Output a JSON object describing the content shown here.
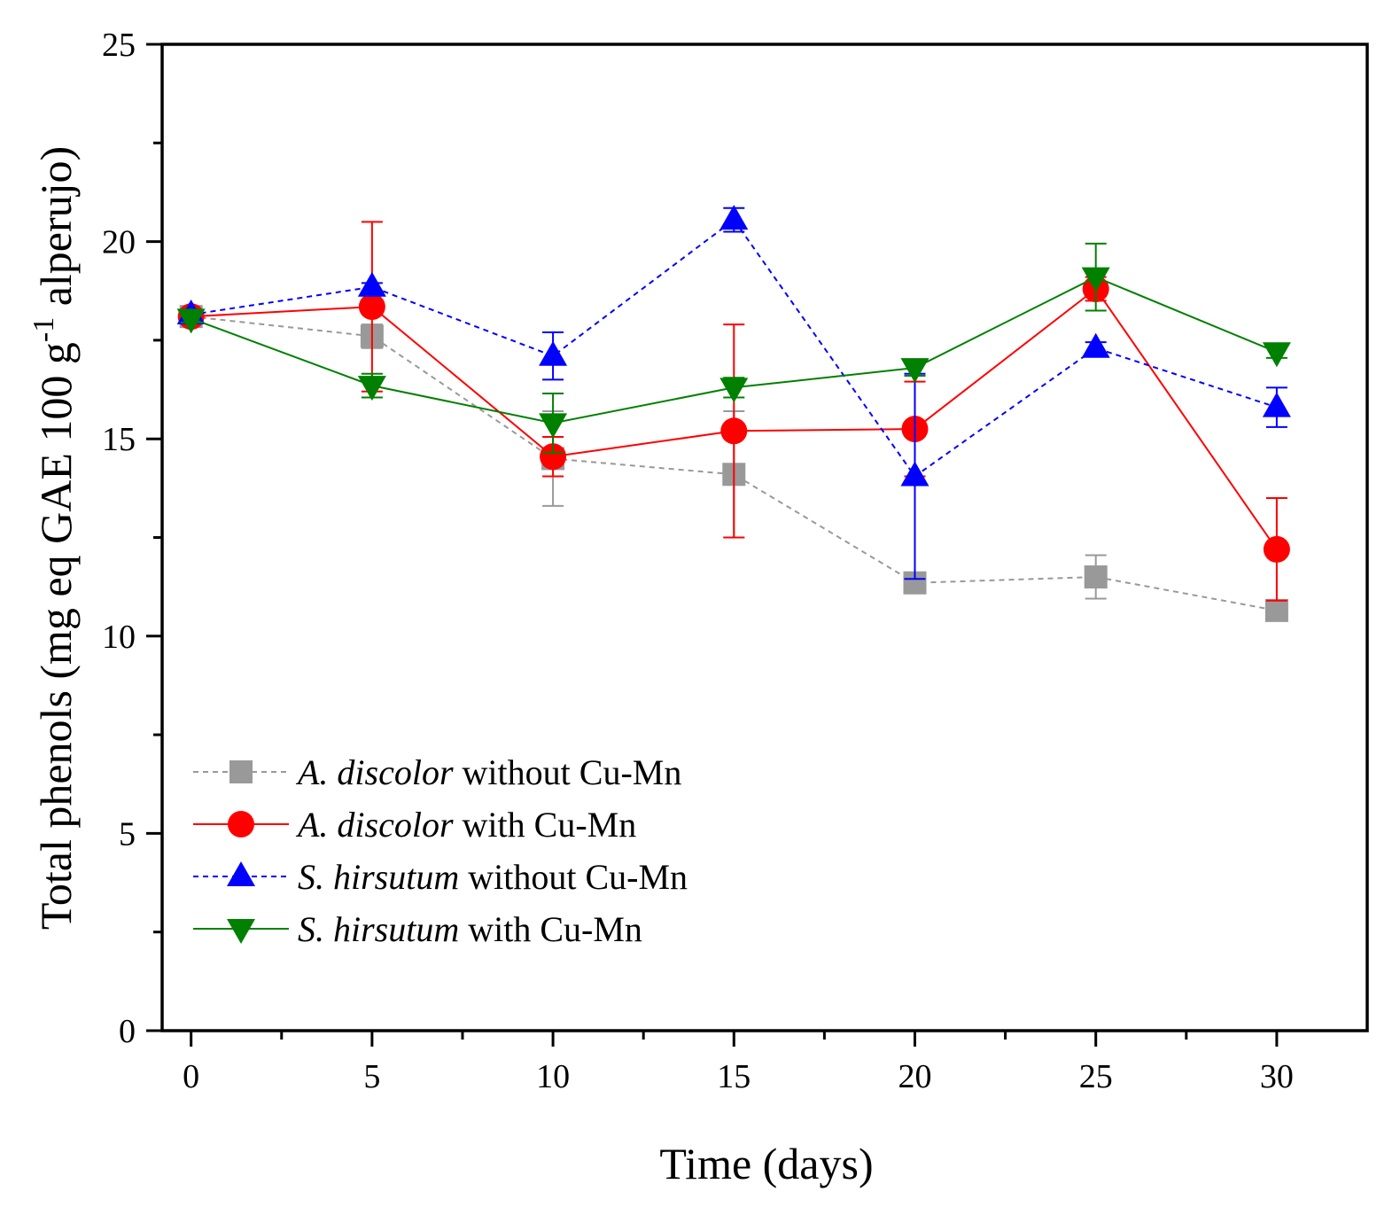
{
  "chart_data": {
    "type": "line",
    "title": "",
    "xlabel": "Time (days)",
    "ylabel_main": "Total phenols (mg eq GAE 100 g",
    "ylabel_sup": "-1",
    "ylabel_tail": " alperujo)",
    "xlim": [
      -0.8,
      32.5
    ],
    "ylim": [
      0,
      25
    ],
    "x_ticks": [
      0,
      5,
      10,
      15,
      20,
      25,
      30
    ],
    "y_ticks": [
      0,
      5,
      10,
      15,
      20,
      25
    ],
    "x_tick_labels": [
      "0",
      "5",
      "10",
      "15",
      "20",
      "25",
      "30"
    ],
    "y_tick_labels": [
      "0",
      "5",
      "10",
      "15",
      "20",
      "25"
    ],
    "grid": false,
    "legend_position": "bottom-left",
    "series": [
      {
        "name": "A. discolor without Cu-Mn",
        "name_italic": "A. discolor",
        "name_rest": " without Cu-Mn",
        "color": "#999999",
        "marker": "square",
        "dashed": true,
        "x": [
          0,
          5,
          10,
          15,
          20,
          25,
          30
        ],
        "y": [
          18.1,
          17.6,
          14.5,
          14.1,
          11.35,
          11.5,
          10.65
        ],
        "err": [
          0.15,
          0.3,
          1.2,
          1.6,
          0.15,
          0.55,
          0.15
        ]
      },
      {
        "name": "A. discolor with Cu-Mn",
        "name_italic": "A. discolor",
        "name_rest": " with Cu-Mn",
        "color": "#ff0000",
        "marker": "circle",
        "dashed": false,
        "x": [
          0,
          5,
          10,
          15,
          20,
          25,
          30
        ],
        "y": [
          18.1,
          18.35,
          14.55,
          15.2,
          15.25,
          18.8,
          12.2
        ],
        "err": [
          0.1,
          2.15,
          0.5,
          2.7,
          1.2,
          0.3,
          1.3
        ]
      },
      {
        "name": "S. hirsutum without Cu-Mn",
        "name_italic": "S. hirsutum",
        "name_rest": " without Cu-Mn",
        "color": "#0000ff",
        "marker": "triangle-up",
        "dashed": true,
        "x": [
          0,
          5,
          10,
          15,
          20,
          25,
          30
        ],
        "y": [
          18.15,
          18.85,
          17.1,
          20.55,
          14.05,
          17.3,
          15.8
        ],
        "err": [
          0.1,
          0.1,
          0.6,
          0.3,
          2.6,
          0.15,
          0.5
        ]
      },
      {
        "name": "S. hirsutum with Cu-Mn",
        "name_italic": "S. hirsutum",
        "name_rest": " with Cu-Mn",
        "color": "#008000",
        "marker": "triangle-down",
        "dashed": false,
        "x": [
          0,
          5,
          10,
          15,
          20,
          25,
          30
        ],
        "y": [
          18.05,
          16.35,
          15.4,
          16.3,
          16.8,
          19.1,
          17.2
        ],
        "err": [
          0.1,
          0.3,
          0.75,
          0.25,
          0.2,
          0.85,
          0.15
        ]
      }
    ]
  }
}
